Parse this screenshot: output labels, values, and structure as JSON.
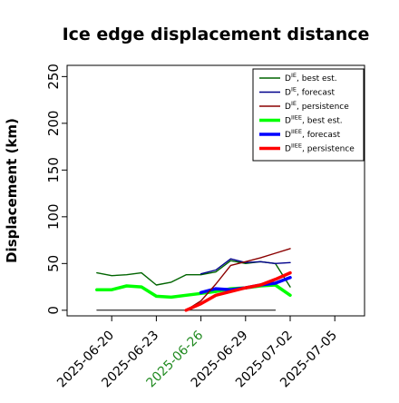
{
  "chart_data": {
    "type": "line",
    "title": "Ice edge displacement distance",
    "xlabel": "",
    "ylabel": "Displacement (km)",
    "ylim": [
      -6,
      262
    ],
    "xlim": [
      "2025-06-17",
      "2025-07-07"
    ],
    "y_ticks": [
      0,
      50,
      100,
      150,
      200,
      250
    ],
    "x_ticks": [
      {
        "date": "2025-06-20",
        "label": "2025-06-20",
        "color": "#000000"
      },
      {
        "date": "2025-06-23",
        "label": "2025-06-23",
        "color": "#000000"
      },
      {
        "date": "2025-06-26",
        "label": "2025-06-26",
        "color": "#228B22"
      },
      {
        "date": "2025-06-29",
        "label": "2025-06-29",
        "color": "#000000"
      },
      {
        "date": "2025-07-02",
        "label": "2025-07-02",
        "color": "#000000"
      },
      {
        "date": "2025-07-05",
        "label": "2025-07-05",
        "color": "#000000"
      }
    ],
    "grid": false,
    "legend_position": "top-right",
    "legend": [
      {
        "base": "D",
        "sup": "IE",
        "suffix": ", best est.",
        "color": "#006400",
        "thick": false
      },
      {
        "base": "D",
        "sup": "IE",
        "suffix": ", forecast",
        "color": "#00008B",
        "thick": false
      },
      {
        "base": "D",
        "sup": "IE",
        "suffix": ", persistence",
        "color": "#8B0000",
        "thick": false
      },
      {
        "base": "D",
        "sup": "IIEE",
        "suffix": ", best est.",
        "color": "#00FF00",
        "thick": true
      },
      {
        "base": "D",
        "sup": "IIEE",
        "suffix": ", forecast",
        "color": "#0000FF",
        "thick": true
      },
      {
        "base": "D",
        "sup": "IIEE",
        "suffix": ", persistence",
        "color": "#FF0000",
        "thick": true
      }
    ],
    "series": [
      {
        "color": "#000000",
        "width": 1,
        "points": [
          [
            "2025-06-19",
            0
          ],
          [
            "2025-07-01",
            0
          ]
        ]
      },
      {
        "color": "#006400",
        "width": 1.4,
        "points": [
          [
            "2025-06-19",
            40
          ],
          [
            "2025-06-20",
            37
          ],
          [
            "2025-06-21",
            38
          ],
          [
            "2025-06-22",
            40
          ],
          [
            "2025-06-23",
            27
          ],
          [
            "2025-06-24",
            30
          ],
          [
            "2025-06-25",
            38
          ],
          [
            "2025-06-26",
            38
          ],
          [
            "2025-06-27",
            41
          ],
          [
            "2025-06-28",
            53
          ],
          [
            "2025-06-29",
            50
          ],
          [
            "2025-06-30",
            52
          ],
          [
            "2025-07-01",
            50
          ],
          [
            "2025-07-02",
            25
          ]
        ]
      },
      {
        "color": "#00FF00",
        "width": 3.5,
        "points": [
          [
            "2025-06-19",
            22
          ],
          [
            "2025-06-20",
            22
          ],
          [
            "2025-06-21",
            26
          ],
          [
            "2025-06-22",
            25
          ],
          [
            "2025-06-23",
            15
          ],
          [
            "2025-06-24",
            14
          ],
          [
            "2025-06-25",
            16
          ],
          [
            "2025-06-26",
            18
          ],
          [
            "2025-06-27",
            20
          ],
          [
            "2025-06-28",
            23
          ],
          [
            "2025-06-29",
            24
          ],
          [
            "2025-06-30",
            26
          ],
          [
            "2025-07-01",
            27
          ],
          [
            "2025-07-02",
            16
          ]
        ]
      },
      {
        "color": "#00008B",
        "width": 1.4,
        "points": [
          [
            "2025-06-26",
            39
          ],
          [
            "2025-06-27",
            43
          ],
          [
            "2025-06-28",
            55
          ],
          [
            "2025-06-29",
            51
          ],
          [
            "2025-06-30",
            52
          ],
          [
            "2025-07-01",
            50
          ],
          [
            "2025-07-02",
            51
          ]
        ]
      },
      {
        "color": "#0000FF",
        "width": 3.5,
        "points": [
          [
            "2025-06-26",
            19
          ],
          [
            "2025-06-27",
            23
          ],
          [
            "2025-06-28",
            22
          ],
          [
            "2025-06-29",
            24
          ],
          [
            "2025-06-30",
            27
          ],
          [
            "2025-07-01",
            29
          ],
          [
            "2025-07-02",
            35
          ]
        ]
      },
      {
        "color": "#8B0000",
        "width": 1.4,
        "points": [
          [
            "2025-06-25",
            0
          ],
          [
            "2025-06-26",
            10
          ],
          [
            "2025-06-27",
            28
          ],
          [
            "2025-06-28",
            48
          ],
          [
            "2025-06-29",
            52
          ],
          [
            "2025-06-30",
            56
          ],
          [
            "2025-07-01",
            61
          ],
          [
            "2025-07-02",
            66
          ]
        ]
      },
      {
        "color": "#FF0000",
        "width": 3.5,
        "points": [
          [
            "2025-06-25",
            0
          ],
          [
            "2025-06-26",
            7
          ],
          [
            "2025-06-27",
            16
          ],
          [
            "2025-06-28",
            20
          ],
          [
            "2025-06-29",
            24
          ],
          [
            "2025-06-30",
            27
          ],
          [
            "2025-07-01",
            33
          ],
          [
            "2025-07-02",
            40
          ]
        ]
      }
    ]
  }
}
